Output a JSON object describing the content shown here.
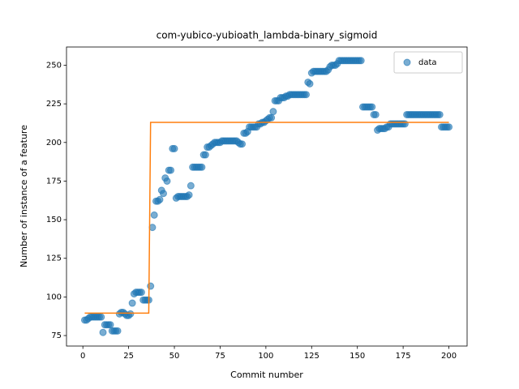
{
  "chart_data": {
    "type": "scatter",
    "title": "com-yubico-yubioath_lambda-binary_sigmoid",
    "x_label": "Commit number",
    "y_label": "Number of instance of a feature",
    "xlim": [
      -8.95,
      209.95
    ],
    "ylim": [
      68.2,
      261.8
    ],
    "xticks": [
      0,
      25,
      50,
      75,
      100,
      125,
      150,
      175,
      200
    ],
    "yticks": [
      75,
      100,
      125,
      150,
      175,
      200,
      225,
      250
    ],
    "legend": "upper right",
    "series": [
      {
        "name": "data",
        "type": "scatter",
        "color": "#1f77b4",
        "x": [
          1,
          2,
          3,
          4,
          5,
          6,
          7,
          8,
          9,
          10,
          11,
          12,
          13,
          14,
          15,
          16,
          17,
          18,
          19,
          20,
          21,
          22,
          23,
          24,
          25,
          26,
          27,
          28,
          29,
          30,
          31,
          32,
          33,
          34,
          35,
          36,
          37,
          38,
          39,
          40,
          41,
          42,
          43,
          44,
          45,
          46,
          47,
          48,
          49,
          50,
          51,
          52,
          53,
          54,
          55,
          56,
          57,
          58,
          59,
          60,
          61,
          62,
          63,
          64,
          65,
          66,
          67,
          68,
          69,
          70,
          71,
          72,
          73,
          74,
          75,
          76,
          77,
          78,
          79,
          80,
          81,
          82,
          83,
          84,
          85,
          86,
          87,
          88,
          89,
          90,
          91,
          92,
          93,
          94,
          95,
          96,
          97,
          98,
          99,
          100,
          101,
          102,
          103,
          104,
          105,
          106,
          107,
          108,
          109,
          110,
          111,
          112,
          113,
          114,
          115,
          116,
          117,
          118,
          119,
          120,
          121,
          122,
          123,
          124,
          125,
          126,
          127,
          128,
          129,
          130,
          131,
          132,
          133,
          134,
          135,
          136,
          137,
          138,
          139,
          140,
          141,
          142,
          143,
          144,
          145,
          146,
          147,
          148,
          149,
          150,
          151,
          152,
          153,
          154,
          155,
          156,
          157,
          158,
          159,
          160,
          161,
          162,
          163,
          164,
          165,
          166,
          167,
          168,
          169,
          170,
          171,
          172,
          173,
          174,
          175,
          176,
          177,
          178,
          179,
          180,
          181,
          182,
          183,
          184,
          185,
          186,
          187,
          188,
          189,
          190,
          191,
          192,
          193,
          194,
          195,
          196,
          197,
          198,
          199,
          200
        ],
        "values": [
          85,
          85,
          86,
          87,
          87,
          87,
          87,
          87,
          87,
          87,
          77,
          82,
          82,
          82,
          82,
          78,
          78,
          78,
          78,
          89,
          90,
          90,
          89,
          88,
          88,
          89,
          96,
          102,
          103,
          103,
          103,
          103,
          98,
          98,
          98,
          98,
          107,
          145,
          153,
          162,
          162,
          163,
          169,
          167,
          177,
          175,
          182,
          182,
          196,
          196,
          164,
          165,
          165,
          165,
          165,
          165,
          165,
          166,
          172,
          184,
          184,
          184,
          184,
          184,
          184,
          192,
          192,
          197,
          197,
          198,
          199,
          200,
          200,
          200,
          200,
          201,
          201,
          201,
          201,
          201,
          201,
          201,
          201,
          201,
          200,
          199,
          199,
          206,
          206,
          207,
          210,
          210,
          210,
          210,
          210,
          212,
          212,
          213,
          213,
          214,
          215,
          216,
          216,
          220,
          227,
          227,
          227,
          229,
          229,
          229,
          230,
          230,
          231,
          231,
          231,
          231,
          231,
          231,
          231,
          231,
          231,
          231,
          239,
          238,
          245,
          246,
          246,
          246,
          246,
          246,
          246,
          246,
          246,
          247,
          249,
          250,
          250,
          250,
          251,
          253,
          253,
          253,
          253,
          253,
          253,
          253,
          253,
          253,
          253,
          253,
          253,
          253,
          223,
          223,
          223,
          223,
          223,
          223,
          218,
          218,
          208,
          209,
          209,
          209,
          209,
          210,
          210,
          212,
          212,
          212,
          212,
          212,
          212,
          212,
          212,
          212,
          218,
          218,
          218,
          218,
          218,
          218,
          218,
          218,
          218,
          218,
          218,
          218,
          218,
          218,
          218,
          218,
          218,
          218,
          218,
          210,
          210,
          210,
          210,
          210
        ]
      },
      {
        "type": "line",
        "color": "#ff7f0e",
        "x": [
          1,
          36,
          37,
          200
        ],
        "values": [
          89.5,
          89.5,
          213,
          213
        ]
      }
    ]
  }
}
